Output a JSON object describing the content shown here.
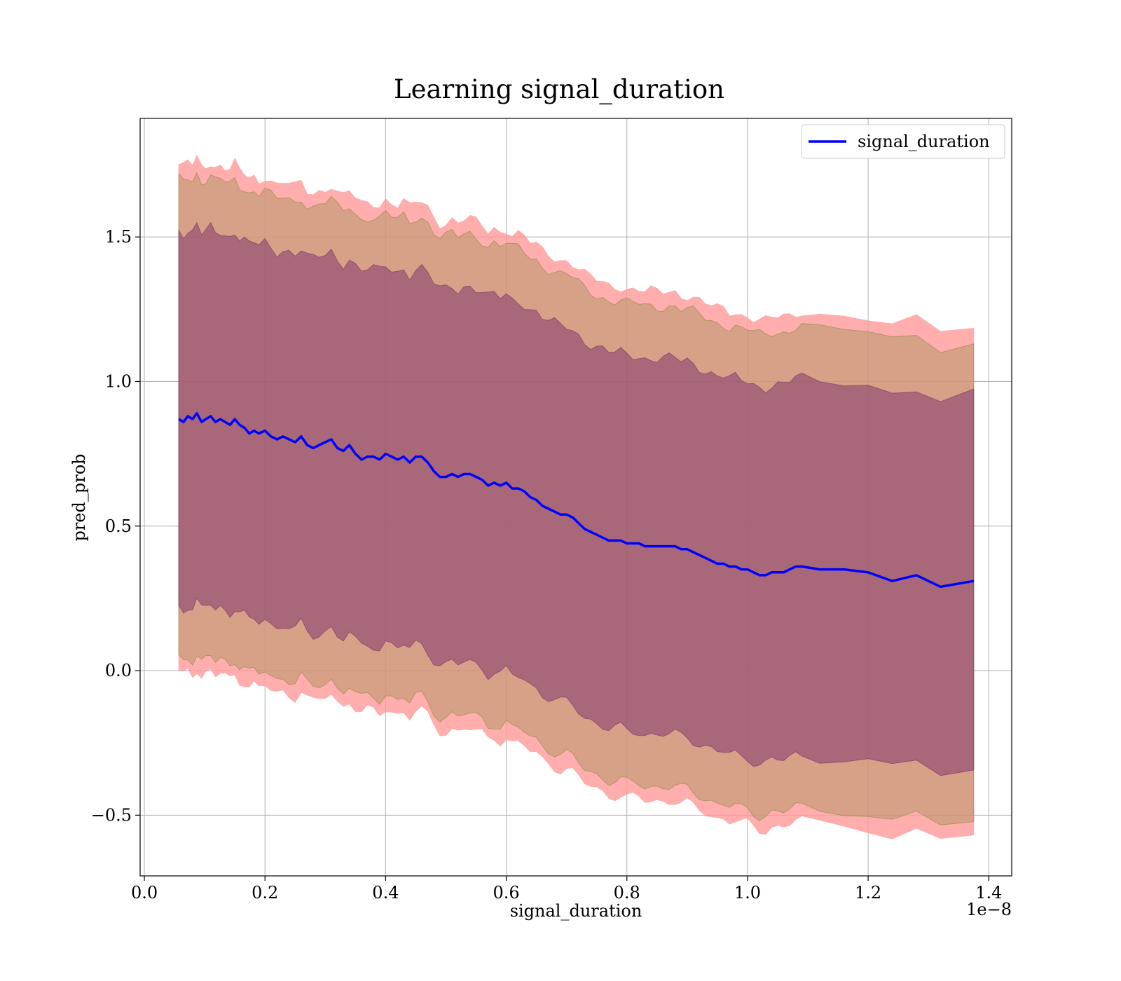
{
  "chart_data": {
    "type": "area",
    "title": "Learning signal_duration",
    "xlabel": "signal_duration",
    "ylabel": "pred_prob",
    "x_offset_text": "1e−8",
    "xlim": [
      -0.007,
      1.438
    ],
    "ylim": [
      -0.71,
      1.91
    ],
    "grid": true,
    "legend_position": "top-right",
    "x_ticks": [
      0.0,
      0.2,
      0.4,
      0.6,
      0.8,
      1.0,
      1.2,
      1.4
    ],
    "x_tick_labels": [
      "0.0",
      "0.2",
      "0.4",
      "0.6",
      "0.8",
      "1.0",
      "1.2",
      "1.4"
    ],
    "y_ticks": [
      -0.5,
      0.0,
      0.5,
      1.0,
      1.5
    ],
    "y_tick_labels": [
      "−0.5",
      "0.0",
      "0.5",
      "1.0",
      "1.5"
    ],
    "series": [
      {
        "name": "signal_duration",
        "color": "#0000ff",
        "x": [
          0.057,
          0.065,
          0.072,
          0.08,
          0.087,
          0.095,
          0.102,
          0.11,
          0.118,
          0.126,
          0.134,
          0.142,
          0.15,
          0.158,
          0.166,
          0.174,
          0.182,
          0.19,
          0.2,
          0.21,
          0.22,
          0.23,
          0.24,
          0.25,
          0.26,
          0.27,
          0.28,
          0.29,
          0.3,
          0.31,
          0.32,
          0.33,
          0.34,
          0.35,
          0.36,
          0.37,
          0.38,
          0.39,
          0.4,
          0.41,
          0.42,
          0.43,
          0.44,
          0.45,
          0.46,
          0.47,
          0.48,
          0.49,
          0.5,
          0.51,
          0.52,
          0.53,
          0.54,
          0.55,
          0.56,
          0.57,
          0.58,
          0.59,
          0.6,
          0.61,
          0.62,
          0.63,
          0.64,
          0.65,
          0.66,
          0.67,
          0.68,
          0.69,
          0.7,
          0.71,
          0.72,
          0.73,
          0.74,
          0.75,
          0.76,
          0.77,
          0.78,
          0.79,
          0.8,
          0.81,
          0.82,
          0.83,
          0.84,
          0.85,
          0.86,
          0.87,
          0.88,
          0.89,
          0.9,
          0.91,
          0.92,
          0.93,
          0.94,
          0.95,
          0.96,
          0.97,
          0.98,
          0.99,
          1.0,
          1.01,
          1.02,
          1.03,
          1.04,
          1.05,
          1.06,
          1.07,
          1.08,
          1.09,
          1.12,
          1.16,
          1.2,
          1.24,
          1.28,
          1.32,
          1.375
        ],
        "values": [
          0.87,
          0.86,
          0.88,
          0.87,
          0.89,
          0.86,
          0.87,
          0.88,
          0.86,
          0.87,
          0.86,
          0.85,
          0.87,
          0.85,
          0.84,
          0.82,
          0.83,
          0.82,
          0.83,
          0.81,
          0.8,
          0.81,
          0.8,
          0.79,
          0.81,
          0.78,
          0.77,
          0.78,
          0.79,
          0.8,
          0.77,
          0.76,
          0.78,
          0.75,
          0.73,
          0.74,
          0.74,
          0.73,
          0.75,
          0.74,
          0.73,
          0.74,
          0.72,
          0.74,
          0.74,
          0.72,
          0.69,
          0.67,
          0.67,
          0.68,
          0.67,
          0.68,
          0.68,
          0.67,
          0.66,
          0.64,
          0.65,
          0.64,
          0.65,
          0.63,
          0.63,
          0.62,
          0.6,
          0.59,
          0.57,
          0.56,
          0.55,
          0.54,
          0.54,
          0.53,
          0.51,
          0.49,
          0.48,
          0.47,
          0.46,
          0.45,
          0.45,
          0.45,
          0.44,
          0.44,
          0.44,
          0.43,
          0.43,
          0.43,
          0.43,
          0.43,
          0.43,
          0.42,
          0.42,
          0.41,
          0.4,
          0.39,
          0.38,
          0.37,
          0.37,
          0.36,
          0.36,
          0.35,
          0.35,
          0.34,
          0.33,
          0.33,
          0.34,
          0.34,
          0.34,
          0.35,
          0.36,
          0.36,
          0.35,
          0.35,
          0.34,
          0.31,
          0.33,
          0.29,
          0.31
        ]
      }
    ],
    "bands": [
      {
        "half_width": 0.88,
        "color": "#ff9999",
        "opacity": 0.8,
        "label": ""
      },
      {
        "half_width": 0.83,
        "color": "#8b8b46",
        "opacity": 0.35,
        "label": ""
      },
      {
        "half_width": 0.65,
        "color": "#7a2f6a",
        "opacity": 0.5,
        "label": ""
      }
    ]
  }
}
